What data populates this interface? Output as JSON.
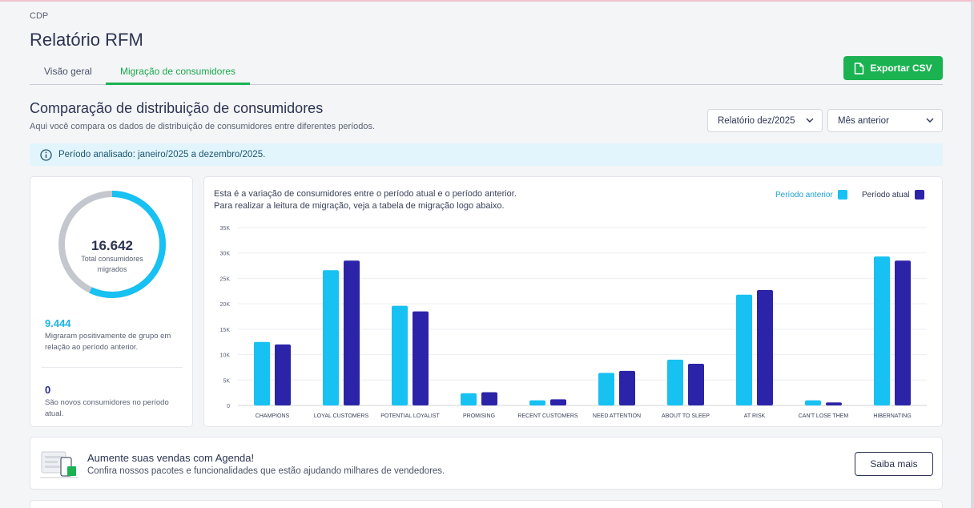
{
  "breadcrumb": "CDP",
  "page_title": "Relatório RFM",
  "tabs": [
    {
      "label": "Visão geral"
    },
    {
      "label": "Migração de consumidores"
    }
  ],
  "export_button": "Exportar CSV",
  "section": {
    "title": "Comparação de distribuição de consumidores",
    "subtitle": "Aqui você compara os dados de distribuição de consumidores entre diferentes períodos."
  },
  "filters": {
    "report": "Relatório dez/2025",
    "compare": "Mês anterior"
  },
  "info": "Período analisado: janeiro/2025 a dezembro/2025.",
  "summary": {
    "total": "16.642",
    "total_label": "Total consumidores migrados",
    "positive_value": "9.444",
    "positive_label": "Migraram positivamente de grupo em relação ao período anterior.",
    "new_value": "0",
    "new_label": "São novos consumidores no período atual.",
    "positive_share": 0.57
  },
  "chart_description": {
    "line1": "Esta é a variação de consumidores entre o período atual e o período anterior.",
    "line2": "Para realizar a leitura de migração, veja a tabela de migração logo abaixo."
  },
  "legend": {
    "previous": "Período anterior",
    "current": "Período atual"
  },
  "colors": {
    "previous": "#17c1f2",
    "current": "#2b24a8",
    "accent": "#1bb251"
  },
  "chart_data": {
    "type": "bar",
    "categories": [
      "CHAMPIONS",
      "LOYAL CUSTOMERS",
      "POTENTIAL LOYALIST",
      "PROMISING",
      "RECENT CUSTOMERS",
      "NEED ATTENTION",
      "ABOUT TO SLEEP",
      "AT RISK",
      "CAN'T LOSE THEM",
      "HIBERNATING"
    ],
    "series": [
      {
        "name": "Período anterior",
        "values": [
          12500,
          26600,
          19600,
          2400,
          1000,
          6400,
          9000,
          21800,
          1000,
          29300
        ]
      },
      {
        "name": "Período atual",
        "values": [
          12000,
          28500,
          18500,
          2600,
          1200,
          6800,
          8200,
          22700,
          600,
          28500
        ]
      }
    ],
    "yticks": [
      "0",
      "5K",
      "10K",
      "15K",
      "20K",
      "25K",
      "30K",
      "35K"
    ],
    "ylim": [
      0,
      35000
    ],
    "xlabel": "",
    "ylabel": "",
    "grid": true
  },
  "promo": {
    "title": "Aumente suas vendas com Agenda!",
    "subtitle": "Confira nossos pacotes e funcionalidades que estão ajudando milhares de vendedores.",
    "button": "Saiba mais"
  }
}
